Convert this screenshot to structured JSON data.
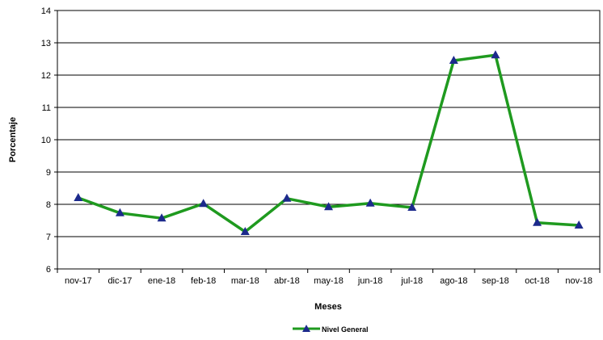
{
  "chart_data": {
    "type": "line",
    "title": "",
    "xlabel": "Meses",
    "ylabel": "Porcentaje",
    "categories": [
      "nov-17",
      "dic-17",
      "ene-18",
      "feb-18",
      "mar-18",
      "abr-18",
      "may-18",
      "jun-18",
      "jul-18",
      "ago-18",
      "sep-18",
      "oct-18",
      "nov-18"
    ],
    "series": [
      {
        "name": "Nivel General",
        "values": [
          8.2,
          7.73,
          7.57,
          8.02,
          7.15,
          8.18,
          7.92,
          8.03,
          7.9,
          12.45,
          12.62,
          7.43,
          7.35
        ],
        "color": "#1f9a1f",
        "marker": "triangle",
        "marker_color": "#1c2a8c"
      }
    ],
    "ylim": [
      6,
      14
    ],
    "yticks": [
      6,
      7,
      8,
      9,
      10,
      11,
      12,
      13,
      14
    ],
    "grid": "horizontal",
    "legend": "bottom-center"
  }
}
